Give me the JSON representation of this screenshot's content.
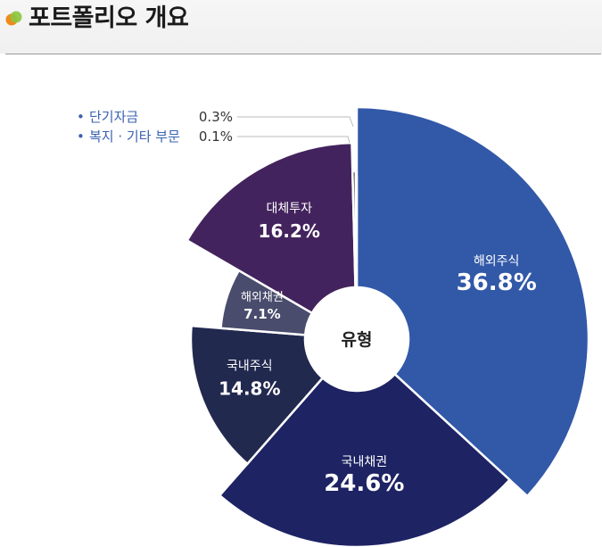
{
  "header": {
    "title": "포트폴리오 개요",
    "icon": "overlapping-orange-green-dots-icon"
  },
  "chart_data": {
    "type": "pie",
    "variant": "polar-area donut (radius varies per slice)",
    "center_label": "유형",
    "slices": [
      {
        "label": "해외주식",
        "value": 36.8,
        "display": "36.8%",
        "color": "#3258a8"
      },
      {
        "label": "국내채권",
        "value": 24.6,
        "display": "24.6%",
        "color": "#1d2363"
      },
      {
        "label": "국내주식",
        "value": 14.8,
        "display": "14.8%",
        "color": "#22294f"
      },
      {
        "label": "해외채권",
        "value": 7.1,
        "display": "7.1%",
        "color": "#4a4c6d"
      },
      {
        "label": "대체투자",
        "value": 16.2,
        "display": "16.2%",
        "color": "#43235d"
      },
      {
        "label": "단기자금",
        "value": 0.3,
        "display": "0.3%",
        "color": "#2a2a2a"
      },
      {
        "label": "복지 · 기타 부문",
        "value": 0.1,
        "display": "0.1%",
        "color": "#8a8a8a"
      }
    ],
    "callouts": [
      {
        "label": "단기자금",
        "value": "0.3%"
      },
      {
        "label": "복지 · 기타 부문",
        "value": "0.1%"
      }
    ]
  }
}
